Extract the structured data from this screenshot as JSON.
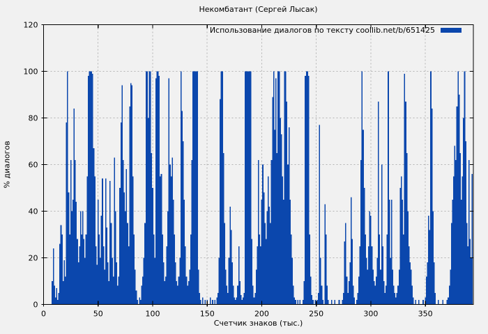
{
  "figure": {
    "background": "#f1f1f1"
  },
  "chart_data": {
    "type": "bar",
    "style": "impulses",
    "title": "Некомбатант (Сергей Лысак)",
    "legend": "Использование диалогов по тексту coollib.net/b/651425",
    "legend_position": "top-right-inside",
    "xlabel": "Счетчик знаков (тыс.)",
    "ylabel": "% диалогов",
    "xlim": [
      0,
      394
    ],
    "ylim": [
      0,
      120
    ],
    "x_ticks": [
      0,
      50,
      100,
      150,
      200,
      250,
      300,
      350
    ],
    "y_ticks": [
      0,
      20,
      40,
      60,
      80,
      100,
      120
    ],
    "grid": true,
    "grid_color": "#b3b3b3",
    "bar_color": "#0b47ad",
    "border_color": "#000000",
    "x_step": 1,
    "values": [
      0,
      0,
      0,
      0,
      0,
      0,
      0,
      0,
      10,
      24,
      8,
      3,
      7,
      2,
      5,
      26,
      34,
      30,
      10,
      19,
      12,
      78,
      100,
      48,
      30,
      62,
      40,
      45,
      84,
      62,
      44,
      28,
      18,
      25,
      40,
      30,
      40,
      28,
      20,
      30,
      55,
      98,
      100,
      100,
      100,
      99,
      67,
      55,
      25,
      17,
      45,
      30,
      20,
      38,
      54,
      25,
      15,
      54,
      33,
      18,
      10,
      53,
      35,
      20,
      12,
      63,
      40,
      18,
      8,
      12,
      50,
      78,
      94,
      62,
      48,
      40,
      58,
      35,
      25,
      85,
      95,
      94,
      55,
      30,
      15,
      6,
      2,
      0,
      3,
      2,
      8,
      12,
      20,
      35,
      100,
      100,
      80,
      100,
      100,
      65,
      50,
      30,
      20,
      97,
      100,
      100,
      98,
      55,
      56,
      30,
      18,
      10,
      12,
      25,
      40,
      97,
      60,
      55,
      63,
      45,
      30,
      18,
      10,
      8,
      12,
      20,
      100,
      83,
      70,
      45,
      25,
      12,
      8,
      10,
      15,
      30,
      62,
      100,
      100,
      100,
      100,
      100,
      15,
      5,
      2,
      0,
      3,
      0,
      2,
      0,
      2,
      0,
      0,
      3,
      0,
      2,
      0,
      2,
      0,
      3,
      5,
      20,
      88,
      100,
      100,
      65,
      35,
      15,
      8,
      5,
      20,
      42,
      32,
      18,
      8,
      3,
      2,
      3,
      8,
      25,
      10,
      4,
      2,
      3,
      5,
      100,
      100,
      100,
      100,
      100,
      100,
      28,
      8,
      3,
      5,
      15,
      25,
      62,
      30,
      25,
      45,
      60,
      48,
      35,
      28,
      40,
      55,
      42,
      35,
      62,
      89,
      100,
      75,
      97,
      65,
      100,
      100,
      80,
      73,
      55,
      45,
      100,
      100,
      87,
      60,
      76,
      45,
      30,
      20,
      8,
      3,
      2,
      0,
      2,
      0,
      2,
      0,
      0,
      2,
      10,
      98,
      100,
      100,
      98,
      30,
      12,
      4,
      2,
      0,
      2,
      0,
      2,
      5,
      77,
      20,
      8,
      2,
      0,
      43,
      30,
      8,
      2,
      0,
      0,
      2,
      0,
      0,
      2,
      0,
      0,
      0,
      2,
      0,
      0,
      2,
      5,
      27,
      35,
      12,
      5,
      10,
      18,
      46,
      28,
      8,
      3,
      0,
      2,
      5,
      12,
      25,
      62,
      100,
      75,
      50,
      30,
      20,
      15,
      25,
      40,
      38,
      25,
      15,
      10,
      8,
      12,
      20,
      87,
      30,
      15,
      60,
      25,
      10,
      5,
      8,
      30,
      100,
      45,
      20,
      45,
      15,
      8,
      5,
      3,
      5,
      8,
      15,
      50,
      55,
      45,
      30,
      99,
      87,
      65,
      40,
      25,
      18,
      15,
      8,
      3,
      0,
      2,
      0,
      0,
      2,
      0,
      0,
      0,
      2,
      0,
      3,
      12,
      18,
      38,
      32,
      100,
      84,
      40,
      18,
      5,
      0,
      0,
      2,
      0,
      0,
      0,
      2,
      0,
      0,
      0,
      2,
      3,
      8,
      15,
      35,
      45,
      55,
      68,
      62,
      85,
      100,
      90,
      65,
      45,
      55,
      80,
      100,
      70,
      35,
      25,
      62,
      28,
      20,
      56
    ]
  }
}
